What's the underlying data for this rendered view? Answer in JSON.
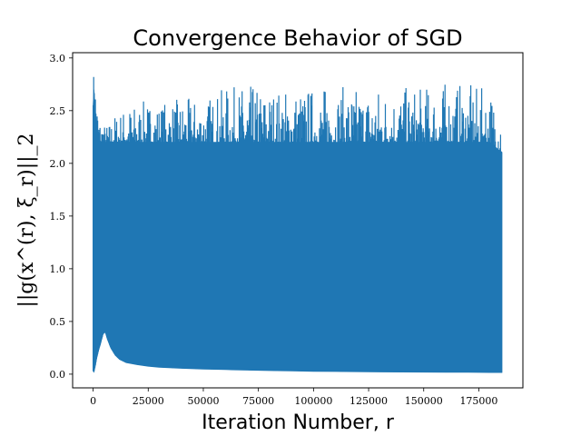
{
  "chart_data": {
    "type": "area",
    "title": "Convergence Behavior of SGD",
    "xlabel": "Iteration Number, r",
    "ylabel": "||g(x^(r), ξ_r)||_2",
    "xlim": [
      -9300,
      195000
    ],
    "ylim": [
      -0.13,
      3.05
    ],
    "xticks": [
      0,
      25000,
      50000,
      75000,
      100000,
      125000,
      150000,
      175000
    ],
    "yticks": [
      0.0,
      0.5,
      1.0,
      1.5,
      2.0,
      2.5,
      3.0
    ],
    "grid": false,
    "color": "#1f77b4",
    "series": [
      {
        "x": [
          0,
          400,
          1000,
          1600,
          2400,
          3500,
          4500,
          5500,
          6500,
          8000,
          10000,
          12000,
          15000,
          20000,
          25000,
          30000,
          40000,
          50000,
          60000,
          70000,
          80000,
          90000,
          100000,
          110000,
          120000,
          130000,
          140000,
          150000,
          160000,
          170000,
          180000,
          185500
        ],
        "upper": [
          2.75,
          2.93,
          2.8,
          2.65,
          2.5,
          2.4,
          2.44,
          2.35,
          2.38,
          2.4,
          2.48,
          2.5,
          2.55,
          2.58,
          2.6,
          2.58,
          2.62,
          2.62,
          2.72,
          2.75,
          2.72,
          2.72,
          2.73,
          2.74,
          2.72,
          2.75,
          2.72,
          2.73,
          2.78,
          2.75,
          2.7,
          2.68
        ],
        "lower": [
          0.03,
          0.02,
          0.08,
          0.15,
          0.22,
          0.3,
          0.38,
          0.4,
          0.33,
          0.25,
          0.18,
          0.14,
          0.11,
          0.09,
          0.075,
          0.065,
          0.055,
          0.048,
          0.043,
          0.038,
          0.034,
          0.03,
          0.027,
          0.025,
          0.023,
          0.021,
          0.02,
          0.019,
          0.018,
          0.017,
          0.016,
          0.016
        ],
        "band_top": [
          2.55,
          2.7,
          2.5,
          2.35,
          2.25,
          2.2,
          2.2,
          2.2,
          2.2,
          2.2,
          2.2,
          2.2,
          2.2,
          2.2,
          2.2,
          2.2,
          2.2,
          2.2,
          2.2,
          2.2,
          2.2,
          2.2,
          2.2,
          2.2,
          2.2,
          2.2,
          2.2,
          2.2,
          2.2,
          2.2,
          2.2,
          2.1
        ]
      }
    ]
  }
}
